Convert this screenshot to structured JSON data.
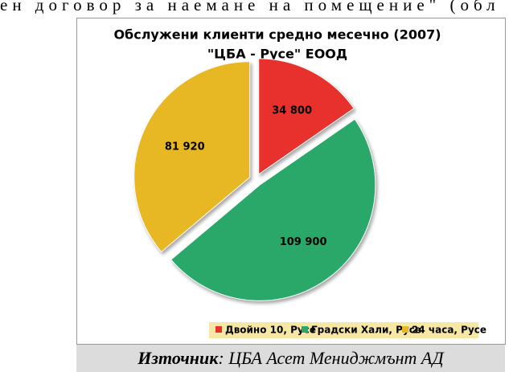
{
  "header_text": "ен договор за наемане на помещение\" (обл",
  "chart_data": {
    "type": "pie",
    "title": "Обслужени клиенти средно месечно (2007)",
    "subtitle": "\"ЦБА - Русе\" ЕООД",
    "categories": [
      "Двойно 10, Русе",
      "Градски Хали, Русе",
      "24 часа, Русе"
    ],
    "values": [
      34800,
      109900,
      81920
    ],
    "value_labels": [
      "34 800",
      "109 900",
      "81 920"
    ],
    "colors": [
      "#e8302c",
      "#2aa86a",
      "#e8b824"
    ]
  },
  "source_label": "Източник",
  "source_text": ": ЦБА Асет Мениджмънт АД"
}
